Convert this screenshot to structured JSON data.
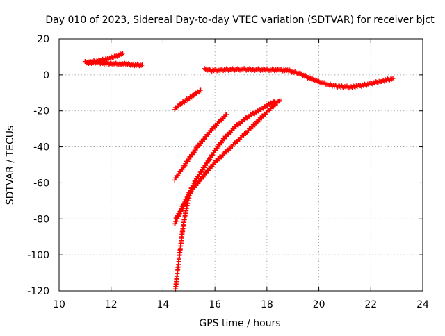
{
  "chart_data": {
    "type": "scatter",
    "title": "Day 010 of 2023, Sidereal Day-to-day VTEC variation (SDTVAR) for receiver bjct",
    "xlabel": "GPS time / hours",
    "ylabel": "SDTVAR / TECUs",
    "xlim": [
      10,
      24
    ],
    "ylim": [
      -120,
      20
    ],
    "xticks": [
      10,
      12,
      14,
      16,
      18,
      20,
      22,
      24
    ],
    "yticks": [
      20,
      0,
      -20,
      -40,
      -60,
      -80,
      -100,
      -120
    ],
    "grid": true,
    "grid_style": "dotted",
    "marker": "+",
    "color": "#ff0000",
    "series": [
      {
        "x": [
          11.0,
          11.3,
          11.6,
          11.9,
          12.2,
          12.45
        ],
        "y": [
          7,
          7.5,
          8,
          9,
          10.5,
          12
        ]
      },
      {
        "x": [
          11.1,
          11.4,
          11.7,
          12.0,
          12.3,
          12.6,
          12.9,
          13.2
        ],
        "y": [
          6.5,
          7,
          6.5,
          6,
          6,
          6,
          5.5,
          5.5
        ]
      },
      {
        "x": [
          15.6,
          15.8,
          16.2,
          16.6,
          17.0,
          17.5,
          18.0,
          18.5,
          18.8,
          19.2,
          19.6,
          20.0,
          20.4,
          20.8,
          21.2,
          21.6,
          22.0,
          22.4,
          22.85
        ],
        "y": [
          3.5,
          2.5,
          2.8,
          3.0,
          3.1,
          3.0,
          2.9,
          2.8,
          2.5,
          1.0,
          -1.5,
          -4.0,
          -5.5,
          -6.5,
          -6.8,
          -6.0,
          -5.0,
          -3.5,
          -2.0
        ]
      },
      {
        "x": [
          14.45,
          14.7,
          14.95,
          15.2,
          15.45
        ],
        "y": [
          -19,
          -16,
          -13.5,
          -11,
          -8.5
        ]
      },
      {
        "x": [
          14.45,
          14.6,
          14.8,
          15.0,
          15.3,
          15.6,
          15.9,
          16.2,
          16.45
        ],
        "y": [
          -58,
          -55,
          -51,
          -46.5,
          -40.5,
          -35,
          -30,
          -25.5,
          -22
        ]
      },
      {
        "x": [
          14.5,
          14.7,
          14.9,
          15.1,
          15.4,
          15.7,
          16.0,
          16.4,
          16.8,
          17.2,
          17.6,
          18.0,
          18.5
        ],
        "y": [
          -80,
          -75,
          -70,
          -64.5,
          -59,
          -53.5,
          -48.5,
          -43,
          -37.5,
          -32,
          -26.5,
          -20.5,
          -14
        ]
      },
      {
        "x": [
          14.45,
          14.6,
          14.8,
          15.0,
          15.2,
          15.5,
          15.8,
          16.1,
          16.4,
          16.8,
          17.2,
          17.6,
          18.0,
          18.3
        ],
        "y": [
          -83,
          -78,
          -72,
          -66,
          -60,
          -53,
          -46.5,
          -40,
          -34.5,
          -28.5,
          -24,
          -20.5,
          -17,
          -14.5
        ]
      },
      {
        "x": [
          14.48,
          14.52,
          14.57,
          14.62,
          14.67,
          14.72,
          14.78,
          14.85,
          14.92,
          15.0,
          15.1
        ],
        "y": [
          -119,
          -114,
          -108,
          -102,
          -96,
          -90,
          -84,
          -78,
          -73,
          -68,
          -63
        ]
      }
    ]
  }
}
